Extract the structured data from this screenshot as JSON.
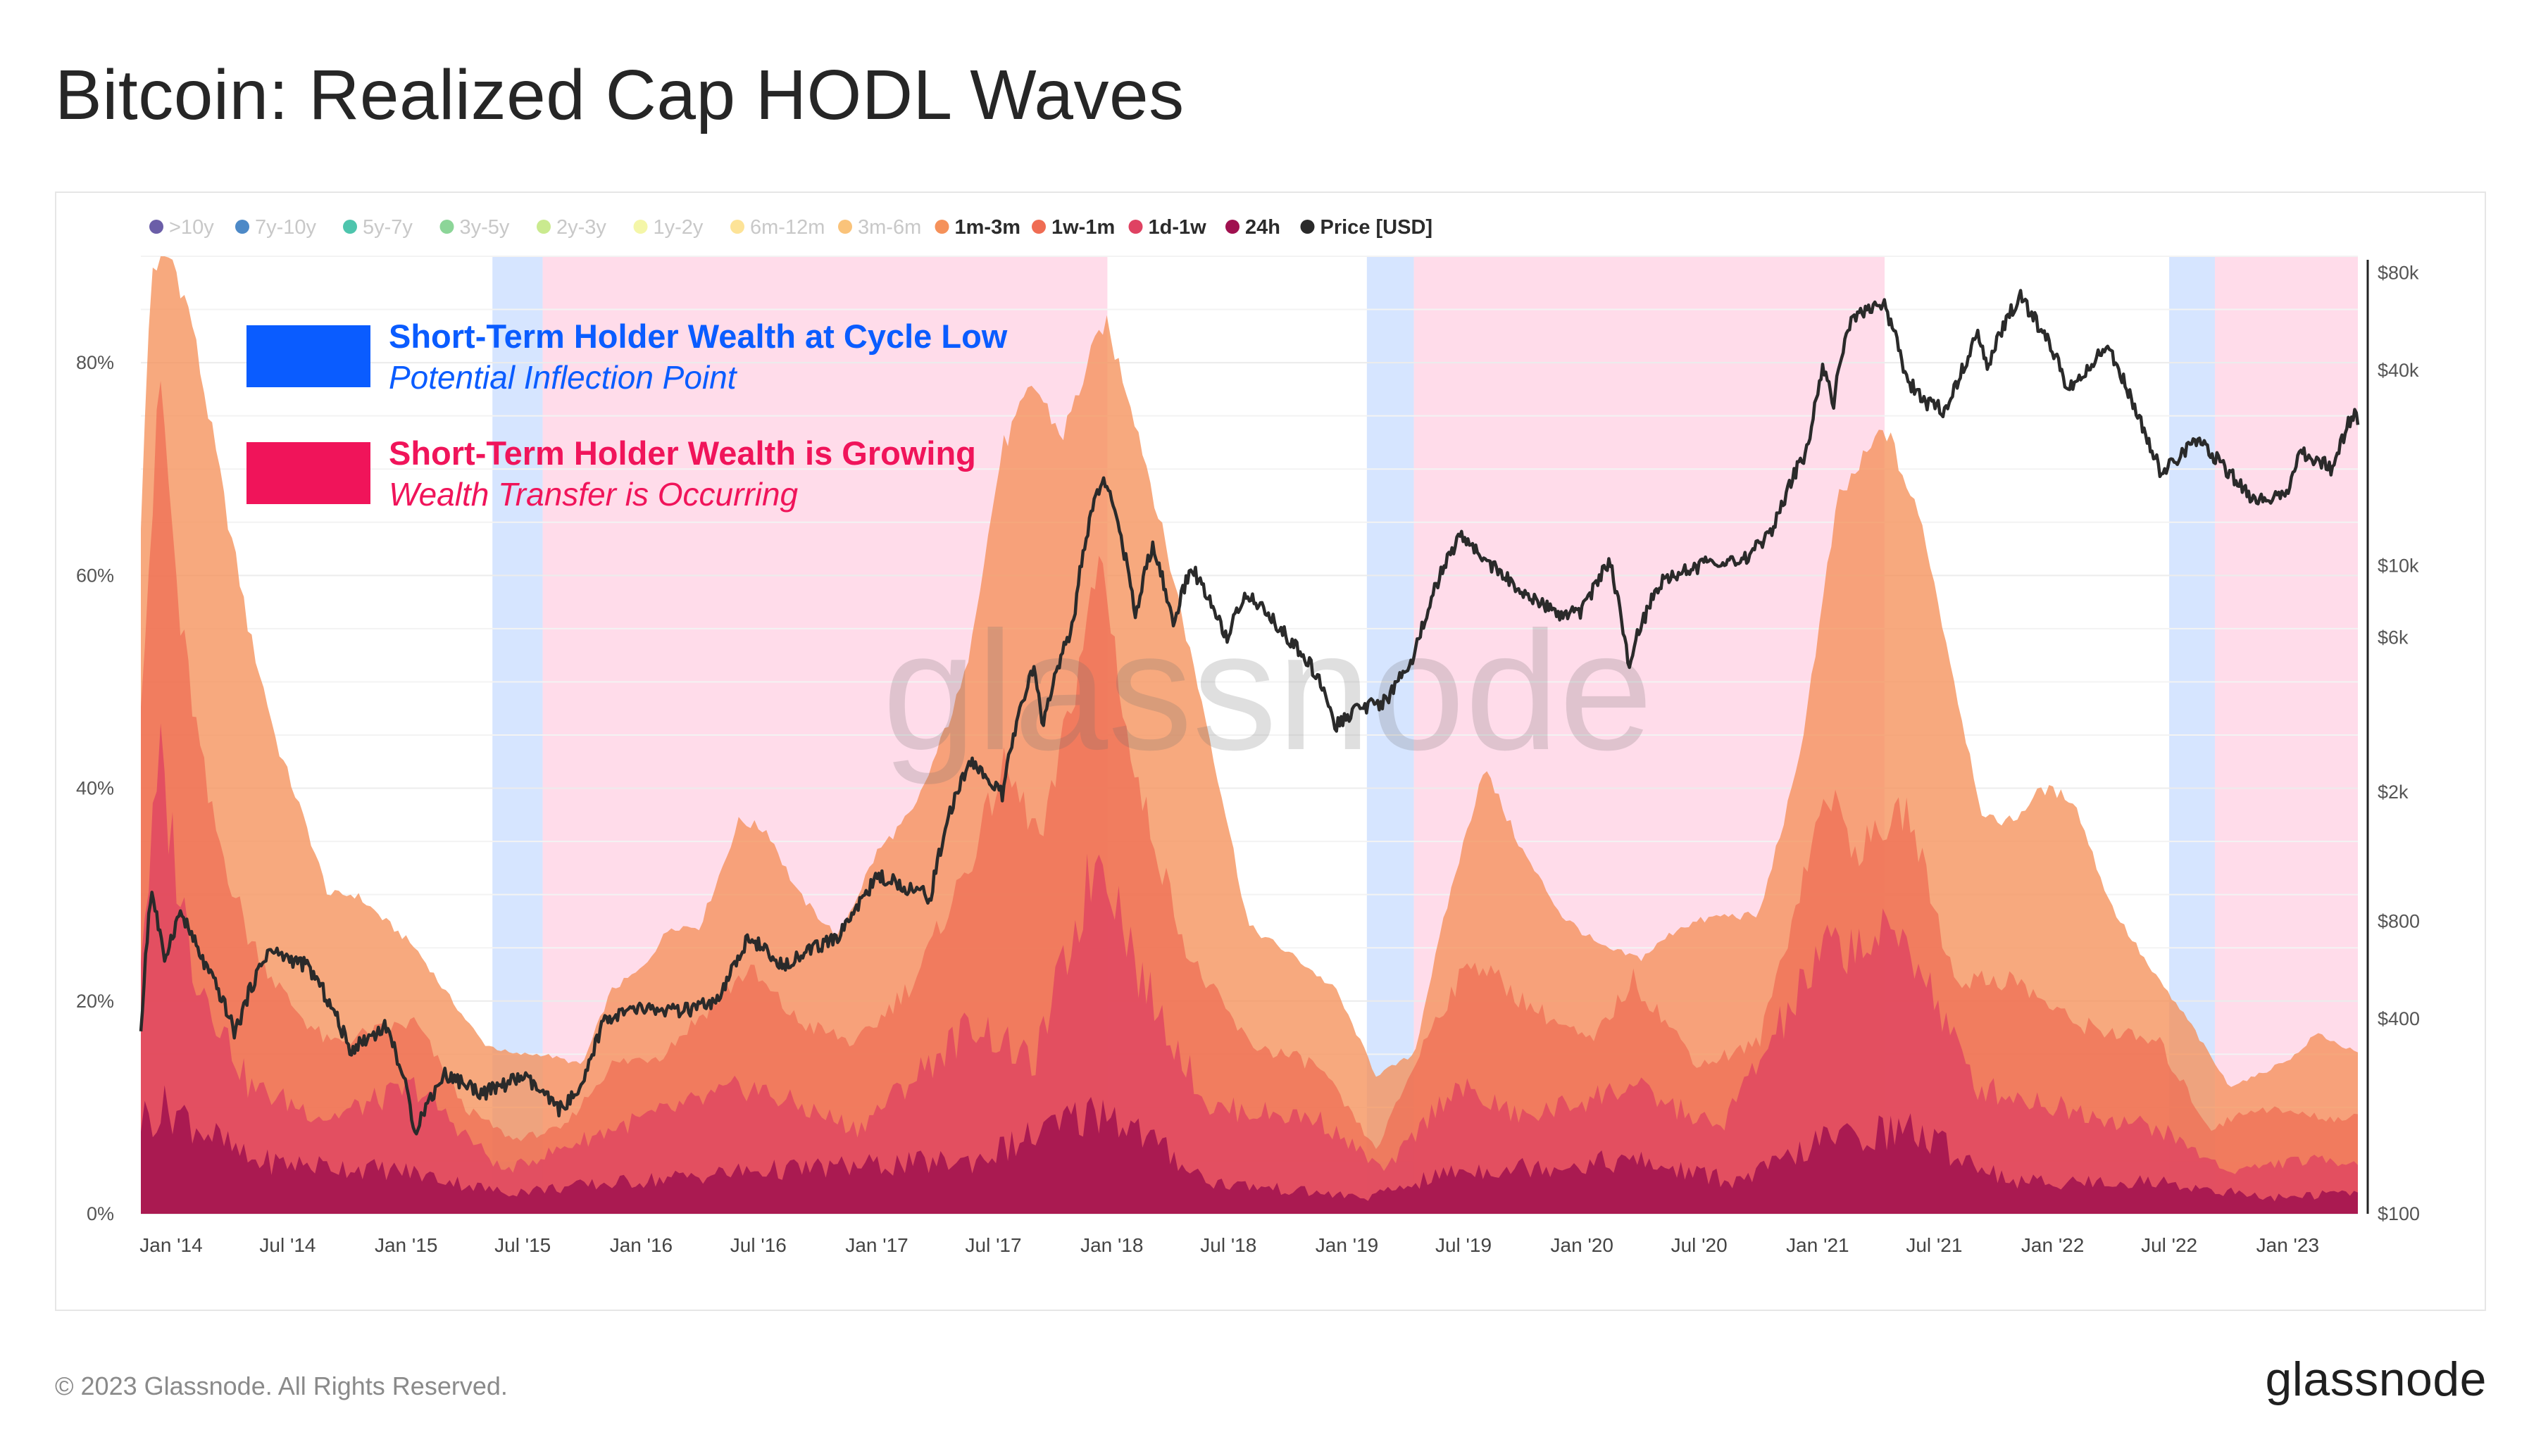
{
  "title": "Bitcoin: Realized Cap HODL Waves",
  "footer": {
    "copyright": "© 2023 Glassnode. All Rights Reserved.",
    "logo": "glassnode"
  },
  "watermark": "glassnode",
  "colors": {
    "stale_legend": "#c8c8c8",
    "highlight_blue": "#0a5cff",
    "highlight_pink": "#f0145a",
    "band_blue": "#cfe0ff",
    "band_pink": "#ffd6e6",
    "price_line": "#2a2a2a"
  },
  "chart_data": {
    "type": "area",
    "title": "Bitcoin: Realized Cap HODL Waves",
    "stacked": true,
    "y_left": {
      "unit": "%",
      "range": [
        0,
        90
      ],
      "ticks": [
        "0%",
        "20%",
        "40%",
        "60%",
        "80%"
      ]
    },
    "y_right": {
      "scale": "log",
      "range": [
        100,
        90000
      ],
      "ticks": [
        "$100",
        "$400",
        "$800",
        "$2k",
        "$6k",
        "$10k",
        "$40k",
        "$80k"
      ]
    },
    "x_ticks": [
      "Jan '14",
      "Jul '14",
      "Jan '15",
      "Jul '15",
      "Jan '16",
      "Jul '16",
      "Jan '17",
      "Jul '17",
      "Jan '18",
      "Jul '18",
      "Jan '19",
      "Jul '19",
      "Jan '20",
      "Jul '20",
      "Jan '21",
      "Jul '21",
      "Jan '22",
      "Jul '22",
      "Jan '23"
    ],
    "x_range": [
      "2013-11-15",
      "2023-04-20"
    ],
    "legend": [
      {
        "label": ">10y",
        "color": "#5b4c9e",
        "active": false
      },
      {
        "label": "7y-10y",
        "color": "#3a7cc1",
        "active": false
      },
      {
        "label": "5y-7y",
        "color": "#3bbfa4",
        "active": false
      },
      {
        "label": "3y-5y",
        "color": "#7fd08d",
        "active": false
      },
      {
        "label": "2y-3y",
        "color": "#c4e883",
        "active": false
      },
      {
        "label": "1y-2y",
        "color": "#f3f59f",
        "active": false
      },
      {
        "label": "6m-12m",
        "color": "#fde08c",
        "active": false
      },
      {
        "label": "3m-6m",
        "color": "#f9bd6b",
        "active": false
      },
      {
        "label": "1m-3m",
        "color": "#f5915a",
        "active": true
      },
      {
        "label": "1w-1m",
        "color": "#ef6c53",
        "active": true
      },
      {
        "label": "1d-1w",
        "color": "#df4262",
        "active": true
      },
      {
        "label": "24h",
        "color": "#a0104f",
        "active": true
      },
      {
        "label": "Price [USD]",
        "color": "#2a2a2a",
        "active": true
      }
    ],
    "legend_position": "top",
    "annotations": [
      {
        "color": "#0a5cff",
        "title": "Short-Term Holder Wealth at Cycle Low",
        "subtitle": "Potential Inflection Point"
      },
      {
        "color": "#f0145a",
        "title": "Short-Term Holder Wealth is Growing",
        "subtitle": "Wealth Transfer is Occurring"
      }
    ],
    "bands": [
      {
        "type": "blue",
        "from": "2015-05-15",
        "to": "2015-08-01"
      },
      {
        "type": "pink",
        "from": "2015-08-01",
        "to": "2017-12-25"
      },
      {
        "type": "blue",
        "from": "2019-02-01",
        "to": "2019-04-15"
      },
      {
        "type": "pink",
        "from": "2019-04-15",
        "to": "2021-04-15"
      },
      {
        "type": "blue",
        "from": "2022-07-01",
        "to": "2022-09-10"
      },
      {
        "type": "pink",
        "from": "2022-09-10",
        "to": "2023-04-20"
      }
    ],
    "series": [
      {
        "name": "1m-3m",
        "color": "#f5915a",
        "unit": "%",
        "cumulative": true,
        "points": [
          [
            "2013-11-15",
            65
          ],
          [
            "2013-12-01",
            89
          ],
          [
            "2014-01-01",
            90
          ],
          [
            "2014-02-01",
            84
          ],
          [
            "2014-03-15",
            70
          ],
          [
            "2014-05-01",
            55
          ],
          [
            "2014-06-15",
            44
          ],
          [
            "2014-08-01",
            36
          ],
          [
            "2014-09-01",
            30
          ],
          [
            "2014-10-15",
            30
          ],
          [
            "2015-01-15",
            25
          ],
          [
            "2015-03-01",
            21
          ],
          [
            "2015-05-01",
            16
          ],
          [
            "2015-06-15",
            15
          ],
          [
            "2015-08-01",
            15
          ],
          [
            "2015-10-01",
            14
          ],
          [
            "2015-11-15",
            21
          ],
          [
            "2016-01-01",
            23
          ],
          [
            "2016-02-15",
            27
          ],
          [
            "2016-04-01",
            27
          ],
          [
            "2016-06-01",
            37
          ],
          [
            "2016-07-15",
            36
          ],
          [
            "2016-09-01",
            30
          ],
          [
            "2016-11-01",
            26
          ],
          [
            "2017-01-01",
            34
          ],
          [
            "2017-03-01",
            38
          ],
          [
            "2017-05-15",
            50
          ],
          [
            "2017-07-15",
            72
          ],
          [
            "2017-09-01",
            78
          ],
          [
            "2017-10-15",
            73
          ],
          [
            "2017-12-20",
            84
          ],
          [
            "2018-02-01",
            76
          ],
          [
            "2018-04-01",
            61
          ],
          [
            "2018-06-01",
            45
          ],
          [
            "2018-08-01",
            27
          ],
          [
            "2018-10-15",
            24
          ],
          [
            "2018-12-15",
            21
          ],
          [
            "2019-02-15",
            13
          ],
          [
            "2019-04-15",
            15
          ],
          [
            "2019-06-01",
            28
          ],
          [
            "2019-08-01",
            42
          ],
          [
            "2019-10-01",
            34
          ],
          [
            "2019-12-01",
            28
          ],
          [
            "2020-02-01",
            25
          ],
          [
            "2020-04-01",
            24
          ],
          [
            "2020-06-01",
            27
          ],
          [
            "2020-08-01",
            28
          ],
          [
            "2020-10-01",
            28
          ],
          [
            "2020-12-01",
            42
          ],
          [
            "2021-02-01",
            67
          ],
          [
            "2021-04-15",
            74
          ],
          [
            "2021-06-15",
            64
          ],
          [
            "2021-08-01",
            50
          ],
          [
            "2021-09-15",
            37
          ],
          [
            "2021-11-01",
            37
          ],
          [
            "2021-12-15",
            40
          ],
          [
            "2022-02-01",
            39
          ],
          [
            "2022-04-01",
            29
          ],
          [
            "2022-06-01",
            23
          ],
          [
            "2022-08-01",
            18
          ],
          [
            "2022-10-01",
            12
          ],
          [
            "2022-11-15",
            13
          ],
          [
            "2023-01-15",
            15
          ],
          [
            "2023-02-15",
            17
          ],
          [
            "2023-04-20",
            15
          ]
        ]
      },
      {
        "name": "1w-1m",
        "color": "#ef6c53",
        "unit": "%",
        "cumulative": true,
        "points": [
          [
            "2013-11-15",
            50
          ],
          [
            "2013-12-15",
            78
          ],
          [
            "2014-01-15",
            55
          ],
          [
            "2014-03-01",
            38
          ],
          [
            "2014-05-01",
            26
          ],
          [
            "2014-07-01",
            20
          ],
          [
            "2014-09-01",
            16
          ],
          [
            "2015-01-15",
            18
          ],
          [
            "2015-04-01",
            10
          ],
          [
            "2015-06-15",
            7
          ],
          [
            "2015-09-01",
            8
          ],
          [
            "2015-11-15",
            14
          ],
          [
            "2016-02-01",
            15
          ],
          [
            "2016-06-15",
            23
          ],
          [
            "2016-09-01",
            18
          ],
          [
            "2016-12-01",
            16
          ],
          [
            "2017-03-01",
            22
          ],
          [
            "2017-06-01",
            34
          ],
          [
            "2017-07-15",
            42
          ],
          [
            "2017-09-15",
            35
          ],
          [
            "2017-12-15",
            62
          ],
          [
            "2018-02-01",
            42
          ],
          [
            "2018-05-01",
            24
          ],
          [
            "2018-08-01",
            16
          ],
          [
            "2018-11-15",
            14
          ],
          [
            "2019-02-15",
            6
          ],
          [
            "2019-05-15",
            18
          ],
          [
            "2019-07-15",
            24
          ],
          [
            "2019-10-01",
            20
          ],
          [
            "2020-01-15",
            16
          ],
          [
            "2020-03-20",
            22
          ],
          [
            "2020-07-01",
            14
          ],
          [
            "2020-10-01",
            16
          ],
          [
            "2021-01-15",
            40
          ],
          [
            "2021-03-01",
            34
          ],
          [
            "2021-05-20",
            38
          ],
          [
            "2021-08-01",
            22
          ],
          [
            "2021-11-01",
            22
          ],
          [
            "2022-02-01",
            18
          ],
          [
            "2022-06-15",
            16
          ],
          [
            "2022-09-01",
            8
          ],
          [
            "2022-11-15",
            10
          ],
          [
            "2023-03-01",
            9
          ],
          [
            "2023-04-20",
            9
          ]
        ]
      },
      {
        "name": "1d-1w",
        "color": "#df4262",
        "unit": "%",
        "cumulative": true,
        "points": [
          [
            "2013-11-15",
            25
          ],
          [
            "2013-12-15",
            42
          ],
          [
            "2014-02-01",
            24
          ],
          [
            "2014-05-01",
            12
          ],
          [
            "2014-09-01",
            9
          ],
          [
            "2015-01-15",
            12
          ],
          [
            "2015-06-01",
            4
          ],
          [
            "2015-11-15",
            8
          ],
          [
            "2016-06-15",
            12
          ],
          [
            "2016-12-01",
            8
          ],
          [
            "2017-06-01",
            18
          ],
          [
            "2017-09-01",
            14
          ],
          [
            "2017-12-15",
            35
          ],
          [
            "2018-02-15",
            22
          ],
          [
            "2018-06-01",
            10
          ],
          [
            "2018-11-15",
            9
          ],
          [
            "2019-03-01",
            4
          ],
          [
            "2019-06-15",
            12
          ],
          [
            "2019-10-01",
            9
          ],
          [
            "2020-03-15",
            12
          ],
          [
            "2020-08-01",
            8
          ],
          [
            "2021-01-15",
            25
          ],
          [
            "2021-05-20",
            26
          ],
          [
            "2021-09-01",
            12
          ],
          [
            "2022-01-15",
            10
          ],
          [
            "2022-06-15",
            8
          ],
          [
            "2022-10-01",
            4
          ],
          [
            "2023-01-15",
            5
          ],
          [
            "2023-04-20",
            5
          ]
        ]
      },
      {
        "name": "24h",
        "color": "#a0104f",
        "unit": "%",
        "cumulative": true,
        "points": [
          [
            "2013-11-15",
            9
          ],
          [
            "2014-01-01",
            10
          ],
          [
            "2014-05-01",
            5
          ],
          [
            "2015-01-01",
            4
          ],
          [
            "2015-06-01",
            2
          ],
          [
            "2016-06-15",
            4
          ],
          [
            "2017-06-01",
            5
          ],
          [
            "2017-12-20",
            10
          ],
          [
            "2018-06-01",
            3
          ],
          [
            "2019-02-01",
            1.5
          ],
          [
            "2019-06-15",
            4
          ],
          [
            "2020-03-15",
            5
          ],
          [
            "2020-09-01",
            3
          ],
          [
            "2021-01-15",
            7
          ],
          [
            "2021-05-20",
            8
          ],
          [
            "2021-11-01",
            3
          ],
          [
            "2022-06-15",
            3
          ],
          [
            "2022-12-01",
            1.5
          ],
          [
            "2023-04-20",
            2
          ]
        ]
      }
    ],
    "price": {
      "name": "Price [USD]",
      "unit": "USD",
      "points": [
        [
          "2013-11-15",
          350
        ],
        [
          "2013-12-01",
          1000
        ],
        [
          "2013-12-20",
          600
        ],
        [
          "2014-01-15",
          850
        ],
        [
          "2014-02-15",
          620
        ],
        [
          "2014-04-10",
          360
        ],
        [
          "2014-06-01",
          650
        ],
        [
          "2014-08-01",
          580
        ],
        [
          "2014-10-05",
          320
        ],
        [
          "2014-12-01",
          380
        ],
        [
          "2015-01-14",
          180
        ],
        [
          "2015-03-01",
          270
        ],
        [
          "2015-05-01",
          235
        ],
        [
          "2015-07-01",
          265
        ],
        [
          "2015-08-25",
          210
        ],
        [
          "2015-10-01",
          240
        ],
        [
          "2015-11-05",
          400
        ],
        [
          "2016-01-01",
          430
        ],
        [
          "2016-03-01",
          420
        ],
        [
          "2016-05-01",
          450
        ],
        [
          "2016-06-17",
          720
        ],
        [
          "2016-08-01",
          580
        ],
        [
          "2016-11-01",
          710
        ],
        [
          "2017-01-04",
          1100
        ],
        [
          "2017-03-25",
          950
        ],
        [
          "2017-05-25",
          2500
        ],
        [
          "2017-07-15",
          1950
        ],
        [
          "2017-09-01",
          4800
        ],
        [
          "2017-09-15",
          3200
        ],
        [
          "2017-11-01",
          6500
        ],
        [
          "2017-12-17",
          19000
        ],
        [
          "2018-02-06",
          6900
        ],
        [
          "2018-03-05",
          11500
        ],
        [
          "2018-04-05",
          6600
        ],
        [
          "2018-05-05",
          9800
        ],
        [
          "2018-06-28",
          5900
        ],
        [
          "2018-07-25",
          8200
        ],
        [
          "2018-09-01",
          7000
        ],
        [
          "2018-11-20",
          4400
        ],
        [
          "2018-12-15",
          3200
        ],
        [
          "2019-01-15",
          3600
        ],
        [
          "2019-03-01",
          3800
        ],
        [
          "2019-04-15",
          5200
        ],
        [
          "2019-06-26",
          12500
        ],
        [
          "2019-08-01",
          10500
        ],
        [
          "2019-09-30",
          8200
        ],
        [
          "2019-11-25",
          7000
        ],
        [
          "2019-12-31",
          7200
        ],
        [
          "2020-02-12",
          10300
        ],
        [
          "2020-03-12",
          4900
        ],
        [
          "2020-05-01",
          8800
        ],
        [
          "2020-07-26",
          10500
        ],
        [
          "2020-09-05",
          10200
        ],
        [
          "2020-10-21",
          12500
        ],
        [
          "2020-12-17",
          23000
        ],
        [
          "2021-01-08",
          41000
        ],
        [
          "2021-01-25",
          32000
        ],
        [
          "2021-02-21",
          57000
        ],
        [
          "2021-03-13",
          61000
        ],
        [
          "2021-04-14",
          63000
        ],
        [
          "2021-05-19",
          37000
        ],
        [
          "2021-06-22",
          31500
        ],
        [
          "2021-07-20",
          30000
        ],
        [
          "2021-09-06",
          51000
        ],
        [
          "2021-09-22",
          41000
        ],
        [
          "2021-11-10",
          68000
        ],
        [
          "2021-12-31",
          46000
        ],
        [
          "2022-01-24",
          35000
        ],
        [
          "2022-03-28",
          47000
        ],
        [
          "2022-05-12",
          29000
        ],
        [
          "2022-06-18",
          19000
        ],
        [
          "2022-08-14",
          24500
        ],
        [
          "2022-09-30",
          19400
        ],
        [
          "2022-11-09",
          15900
        ],
        [
          "2022-12-31",
          16500
        ],
        [
          "2023-01-20",
          22500
        ],
        [
          "2023-03-10",
          19900
        ],
        [
          "2023-04-14",
          30000
        ],
        [
          "2023-04-20",
          28500
        ]
      ]
    }
  }
}
